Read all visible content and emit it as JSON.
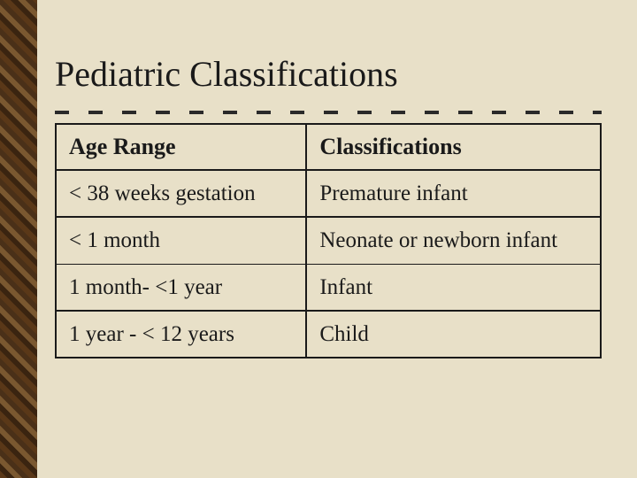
{
  "slide": {
    "title": "Pediatric Classifications",
    "background_color": "#e8e0c8",
    "border_pattern_colors": [
      "#5a3818",
      "#3a2410",
      "#7a5830",
      "#4a3018"
    ],
    "title_fontsize": 40,
    "text_color": "#1a1a1a"
  },
  "table": {
    "type": "table",
    "border_color": "#1a1a1a",
    "header_fontsize": 26,
    "cell_fontsize": 25,
    "columns": [
      {
        "label": "Age Range",
        "width_pct": 46
      },
      {
        "label": "Classifications",
        "width_pct": 54
      }
    ],
    "rows": [
      {
        "age": "< 38 weeks gestation",
        "classification": "Premature infant"
      },
      {
        "age": "< 1 month",
        "classification": "Neonate or newborn infant"
      },
      {
        "age": "1 month- <1 year",
        "classification": "Infant"
      },
      {
        "age": "1 year - < 12 years",
        "classification": "Child"
      }
    ]
  }
}
